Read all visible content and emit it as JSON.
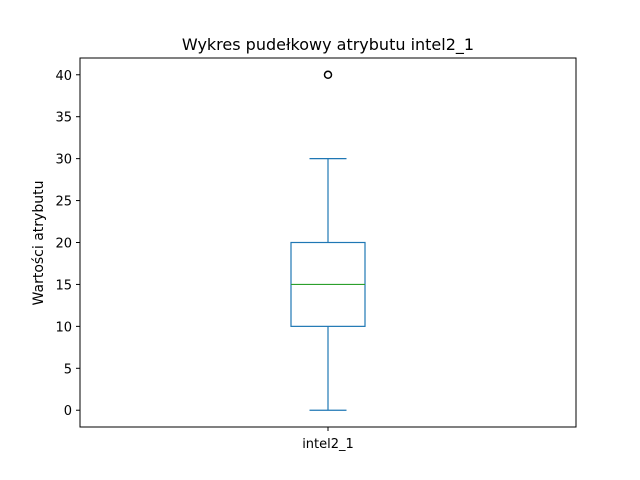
{
  "chart_data": {
    "type": "box",
    "title": "Wykres pudełkowy atrybutu intel2_1",
    "xlabel": "",
    "ylabel": "Wartości atrybutu",
    "categories": [
      "intel2_1"
    ],
    "ylim": [
      -2,
      42
    ],
    "yticks": [
      "0",
      "5",
      "10",
      "15",
      "20",
      "25",
      "30",
      "35",
      "40"
    ],
    "grid": false,
    "boxes": [
      {
        "name": "intel2_1",
        "whisker_low": 0,
        "q1": 10,
        "median": 15,
        "q3": 20,
        "whisker_high": 30,
        "outliers": [
          40
        ]
      }
    ],
    "colors": {
      "box": "#1f77b4",
      "median": "#2ca02c",
      "outlier": "#000000"
    }
  }
}
